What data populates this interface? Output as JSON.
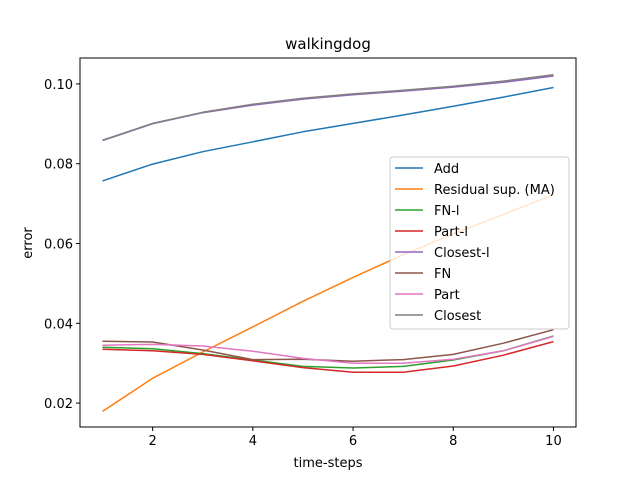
{
  "chart_data": {
    "type": "line",
    "title": "walkingdog",
    "xlabel": "time-steps",
    "ylabel": "error",
    "xlim": [
      0.55,
      10.45
    ],
    "ylim": [
      0.014,
      0.1065
    ],
    "x": [
      1,
      2,
      3,
      4,
      5,
      6,
      7,
      8,
      9,
      10
    ],
    "xticks": [
      2,
      4,
      6,
      8,
      10
    ],
    "yticks": [
      0.02,
      0.04,
      0.06,
      0.08,
      0.1
    ],
    "ytick_labels": [
      "0.02",
      "0.04",
      "0.06",
      "0.08",
      "0.10"
    ],
    "grid": false,
    "legend_position": "center-right",
    "series": [
      {
        "name": "Add",
        "color": "#1f77b4",
        "values": [
          0.0757,
          0.0799,
          0.083,
          0.0855,
          0.088,
          0.0901,
          0.0922,
          0.0944,
          0.0967,
          0.0991
        ]
      },
      {
        "name": "Residual sup. (MA)",
        "color": "#ff7f0e",
        "values": [
          0.0179,
          0.0262,
          0.0328,
          0.0391,
          0.0455,
          0.0515,
          0.0572,
          0.0624,
          0.0673,
          0.0722
        ]
      },
      {
        "name": "FN-l",
        "color": "#2ca02c",
        "values": [
          0.034,
          0.0336,
          0.0324,
          0.0308,
          0.0292,
          0.0288,
          0.0292,
          0.0308,
          0.0331,
          0.0368
        ]
      },
      {
        "name": "Part-l",
        "color": "#d62728",
        "values": [
          0.0335,
          0.0331,
          0.0322,
          0.0306,
          0.0289,
          0.0277,
          0.0277,
          0.0293,
          0.032,
          0.0354
        ]
      },
      {
        "name": "Closest-l",
        "color": "#9467bd",
        "values": [
          0.0858,
          0.09,
          0.0928,
          0.0947,
          0.0962,
          0.0973,
          0.0982,
          0.0992,
          0.1004,
          0.102
        ]
      },
      {
        "name": "FN",
        "color": "#8c564b",
        "values": [
          0.0355,
          0.0353,
          0.0333,
          0.0309,
          0.031,
          0.0305,
          0.0309,
          0.0322,
          0.035,
          0.0384
        ]
      },
      {
        "name": "Part",
        "color": "#e377c2",
        "values": [
          0.0345,
          0.0347,
          0.0343,
          0.033,
          0.0312,
          0.03,
          0.03,
          0.031,
          0.0331,
          0.0367
        ]
      },
      {
        "name": "Closest",
        "color": "#7f7f7f",
        "values": [
          0.0859,
          0.0901,
          0.0929,
          0.0949,
          0.0964,
          0.0975,
          0.0984,
          0.0994,
          0.1007,
          0.1023
        ]
      }
    ]
  }
}
